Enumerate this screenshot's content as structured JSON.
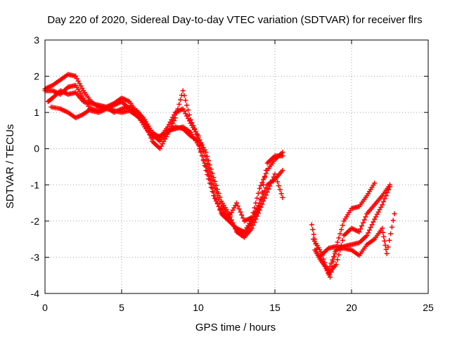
{
  "chart_data": {
    "type": "scatter",
    "title": "Day 220 of 2020, Sidereal Day-to-day VTEC variation (SDTVAR) for receiver flrs",
    "xlabel": "GPS time / hours",
    "ylabel": "SDTVAR / TECUs",
    "xlim": [
      0,
      25
    ],
    "ylim": [
      -4,
      3
    ],
    "xticks": [
      "0",
      "5",
      "10",
      "15",
      "20",
      "25"
    ],
    "yticks": [
      "-4",
      "-3",
      "-2",
      "-1",
      "0",
      "1",
      "2",
      "3"
    ],
    "grid": true,
    "marker": "plus",
    "color": "#ff0000",
    "series": [
      {
        "points": [
          [
            0,
            1.65
          ],
          [
            0.5,
            1.75
          ],
          [
            1,
            1.9
          ],
          [
            1.5,
            2.05
          ],
          [
            2,
            2.0
          ],
          [
            2.5,
            1.6
          ],
          [
            3,
            1.3
          ],
          [
            3.5,
            1.15
          ],
          [
            4,
            1.1
          ],
          [
            4.5,
            1.2
          ],
          [
            5,
            1.3
          ],
          [
            5.5,
            1.1
          ],
          [
            6,
            1.05
          ],
          [
            6.5,
            0.8
          ],
          [
            7,
            0.45
          ],
          [
            7.5,
            0.3
          ],
          [
            8,
            0.6
          ],
          [
            8.5,
            1.0
          ],
          [
            9,
            1.1
          ],
          [
            9.5,
            0.7
          ],
          [
            10,
            0.35
          ],
          [
            10.5,
            -0.3
          ],
          [
            11,
            -1.0
          ],
          [
            11.5,
            -1.6
          ],
          [
            12,
            -1.9
          ],
          [
            12.5,
            -1.5
          ],
          [
            13,
            -2.0
          ],
          [
            13.5,
            -1.9
          ],
          [
            14,
            -1.1
          ],
          [
            14.5,
            -0.6
          ],
          [
            15,
            -0.3
          ],
          [
            15.5,
            -0.1
          ]
        ]
      },
      {
        "points": [
          [
            0,
            1.6
          ],
          [
            0.5,
            1.6
          ],
          [
            1,
            1.5
          ],
          [
            1.5,
            1.7
          ],
          [
            2,
            1.75
          ],
          [
            2.5,
            1.4
          ],
          [
            3,
            1.05
          ],
          [
            3.5,
            1.0
          ],
          [
            4,
            1.1
          ],
          [
            4.5,
            1.05
          ],
          [
            5,
            1.0
          ],
          [
            5.5,
            1.05
          ],
          [
            6,
            0.9
          ],
          [
            6.5,
            0.7
          ],
          [
            7,
            0.4
          ],
          [
            7.5,
            0.2
          ],
          [
            8,
            0.5
          ],
          [
            8.5,
            0.55
          ],
          [
            9,
            0.6
          ],
          [
            9.5,
            0.45
          ],
          [
            10,
            0.1
          ],
          [
            10.5,
            -0.5
          ],
          [
            11,
            -1.2
          ],
          [
            11.5,
            -1.8
          ],
          [
            12,
            -2.0
          ],
          [
            12.5,
            -2.2
          ],
          [
            13,
            -2.3
          ],
          [
            13.5,
            -1.95
          ],
          [
            14,
            -1.5
          ],
          [
            14.5,
            -1.0
          ],
          [
            15,
            -0.85
          ],
          [
            15.5,
            -0.6
          ]
        ]
      },
      {
        "points": [
          [
            0.2,
            1.3
          ],
          [
            0.5,
            1.4
          ],
          [
            1,
            1.6
          ],
          [
            1.5,
            1.5
          ],
          [
            2,
            1.55
          ],
          [
            2.5,
            1.3
          ],
          [
            3,
            1.25
          ],
          [
            3.5,
            1.2
          ],
          [
            4,
            1.15
          ],
          [
            4.5,
            1.25
          ],
          [
            5,
            1.4
          ],
          [
            5.5,
            1.3
          ],
          [
            6,
            1.0
          ],
          [
            6.5,
            0.75
          ],
          [
            7,
            0.2
          ],
          [
            7.5,
            0.0
          ],
          [
            8,
            0.4
          ],
          [
            8.5,
            0.85
          ],
          [
            9,
            1.6
          ],
          [
            9.5,
            0.8
          ],
          [
            10,
            0.3
          ],
          [
            10.5,
            -0.1
          ],
          [
            11,
            -0.8
          ],
          [
            11.5,
            -1.45
          ],
          [
            12,
            -1.8
          ],
          [
            12.5,
            -2.3
          ],
          [
            13,
            -2.45
          ],
          [
            13.5,
            -2.2
          ],
          [
            14,
            -1.7
          ],
          [
            14.5,
            -1.2
          ],
          [
            15,
            -0.7
          ],
          [
            15.5,
            -1.35
          ]
        ]
      },
      {
        "points": [
          [
            0.4,
            1.15
          ],
          [
            1,
            1.1
          ],
          [
            1.5,
            1.0
          ],
          [
            2,
            0.85
          ],
          [
            2.5,
            0.95
          ],
          [
            3,
            1.1
          ],
          [
            3.5,
            1.05
          ],
          [
            4,
            1.15
          ],
          [
            4.5,
            1.0
          ],
          [
            5,
            1.1
          ],
          [
            5.5,
            1.15
          ],
          [
            6,
            0.95
          ],
          [
            6.5,
            0.6
          ],
          [
            7,
            0.3
          ],
          [
            7.5,
            0.35
          ],
          [
            8,
            0.45
          ],
          [
            8.5,
            0.6
          ],
          [
            9,
            0.55
          ],
          [
            9.5,
            0.35
          ],
          [
            10,
            0.2
          ],
          [
            10.5,
            -0.6
          ],
          [
            11,
            -1.3
          ],
          [
            11.5,
            -1.75
          ],
          [
            12,
            -1.95
          ],
          [
            12.5,
            -2.25
          ],
          [
            13,
            -2.35
          ],
          [
            13.5,
            -2.05
          ],
          [
            14,
            -1.6
          ],
          [
            14.5,
            -0.4
          ],
          [
            15,
            -0.2
          ],
          [
            15.5,
            -0.2
          ]
        ]
      },
      {
        "points": [
          [
            17.4,
            -2.1
          ],
          [
            17.8,
            -2.9
          ],
          [
            18.2,
            -3.2
          ],
          [
            18.6,
            -3.55
          ],
          [
            19.0,
            -2.7
          ],
          [
            19.5,
            -2.0
          ],
          [
            20.0,
            -1.65
          ],
          [
            20.5,
            -1.6
          ],
          [
            21.0,
            -1.3
          ],
          [
            21.5,
            -0.95
          ]
        ]
      },
      {
        "points": [
          [
            17.5,
            -2.5
          ],
          [
            18,
            -2.85
          ],
          [
            18.5,
            -3.45
          ],
          [
            19,
            -3.2
          ],
          [
            19.5,
            -2.4
          ],
          [
            20,
            -2.2
          ],
          [
            20.5,
            -2.3
          ],
          [
            21,
            -1.8
          ],
          [
            21.5,
            -1.55
          ],
          [
            22,
            -1.3
          ],
          [
            22.5,
            -1.0
          ]
        ]
      },
      {
        "points": [
          [
            17.6,
            -2.8
          ],
          [
            18,
            -3.1
          ],
          [
            18.5,
            -3.35
          ],
          [
            19,
            -2.8
          ],
          [
            19.5,
            -2.7
          ],
          [
            20,
            -2.65
          ],
          [
            20.5,
            -2.6
          ],
          [
            21,
            -2.4
          ],
          [
            21.5,
            -1.95
          ],
          [
            22,
            -1.55
          ],
          [
            22.5,
            -1.05
          ]
        ]
      },
      {
        "points": [
          [
            18,
            -2.95
          ],
          [
            18.5,
            -2.75
          ],
          [
            19,
            -2.7
          ],
          [
            19.5,
            -2.75
          ],
          [
            20,
            -2.8
          ],
          [
            20.5,
            -2.95
          ],
          [
            21,
            -2.65
          ],
          [
            21.5,
            -2.5
          ],
          [
            22,
            -2.2
          ],
          [
            22.3,
            -2.9
          ],
          [
            22.8,
            -1.8
          ]
        ]
      }
    ]
  }
}
